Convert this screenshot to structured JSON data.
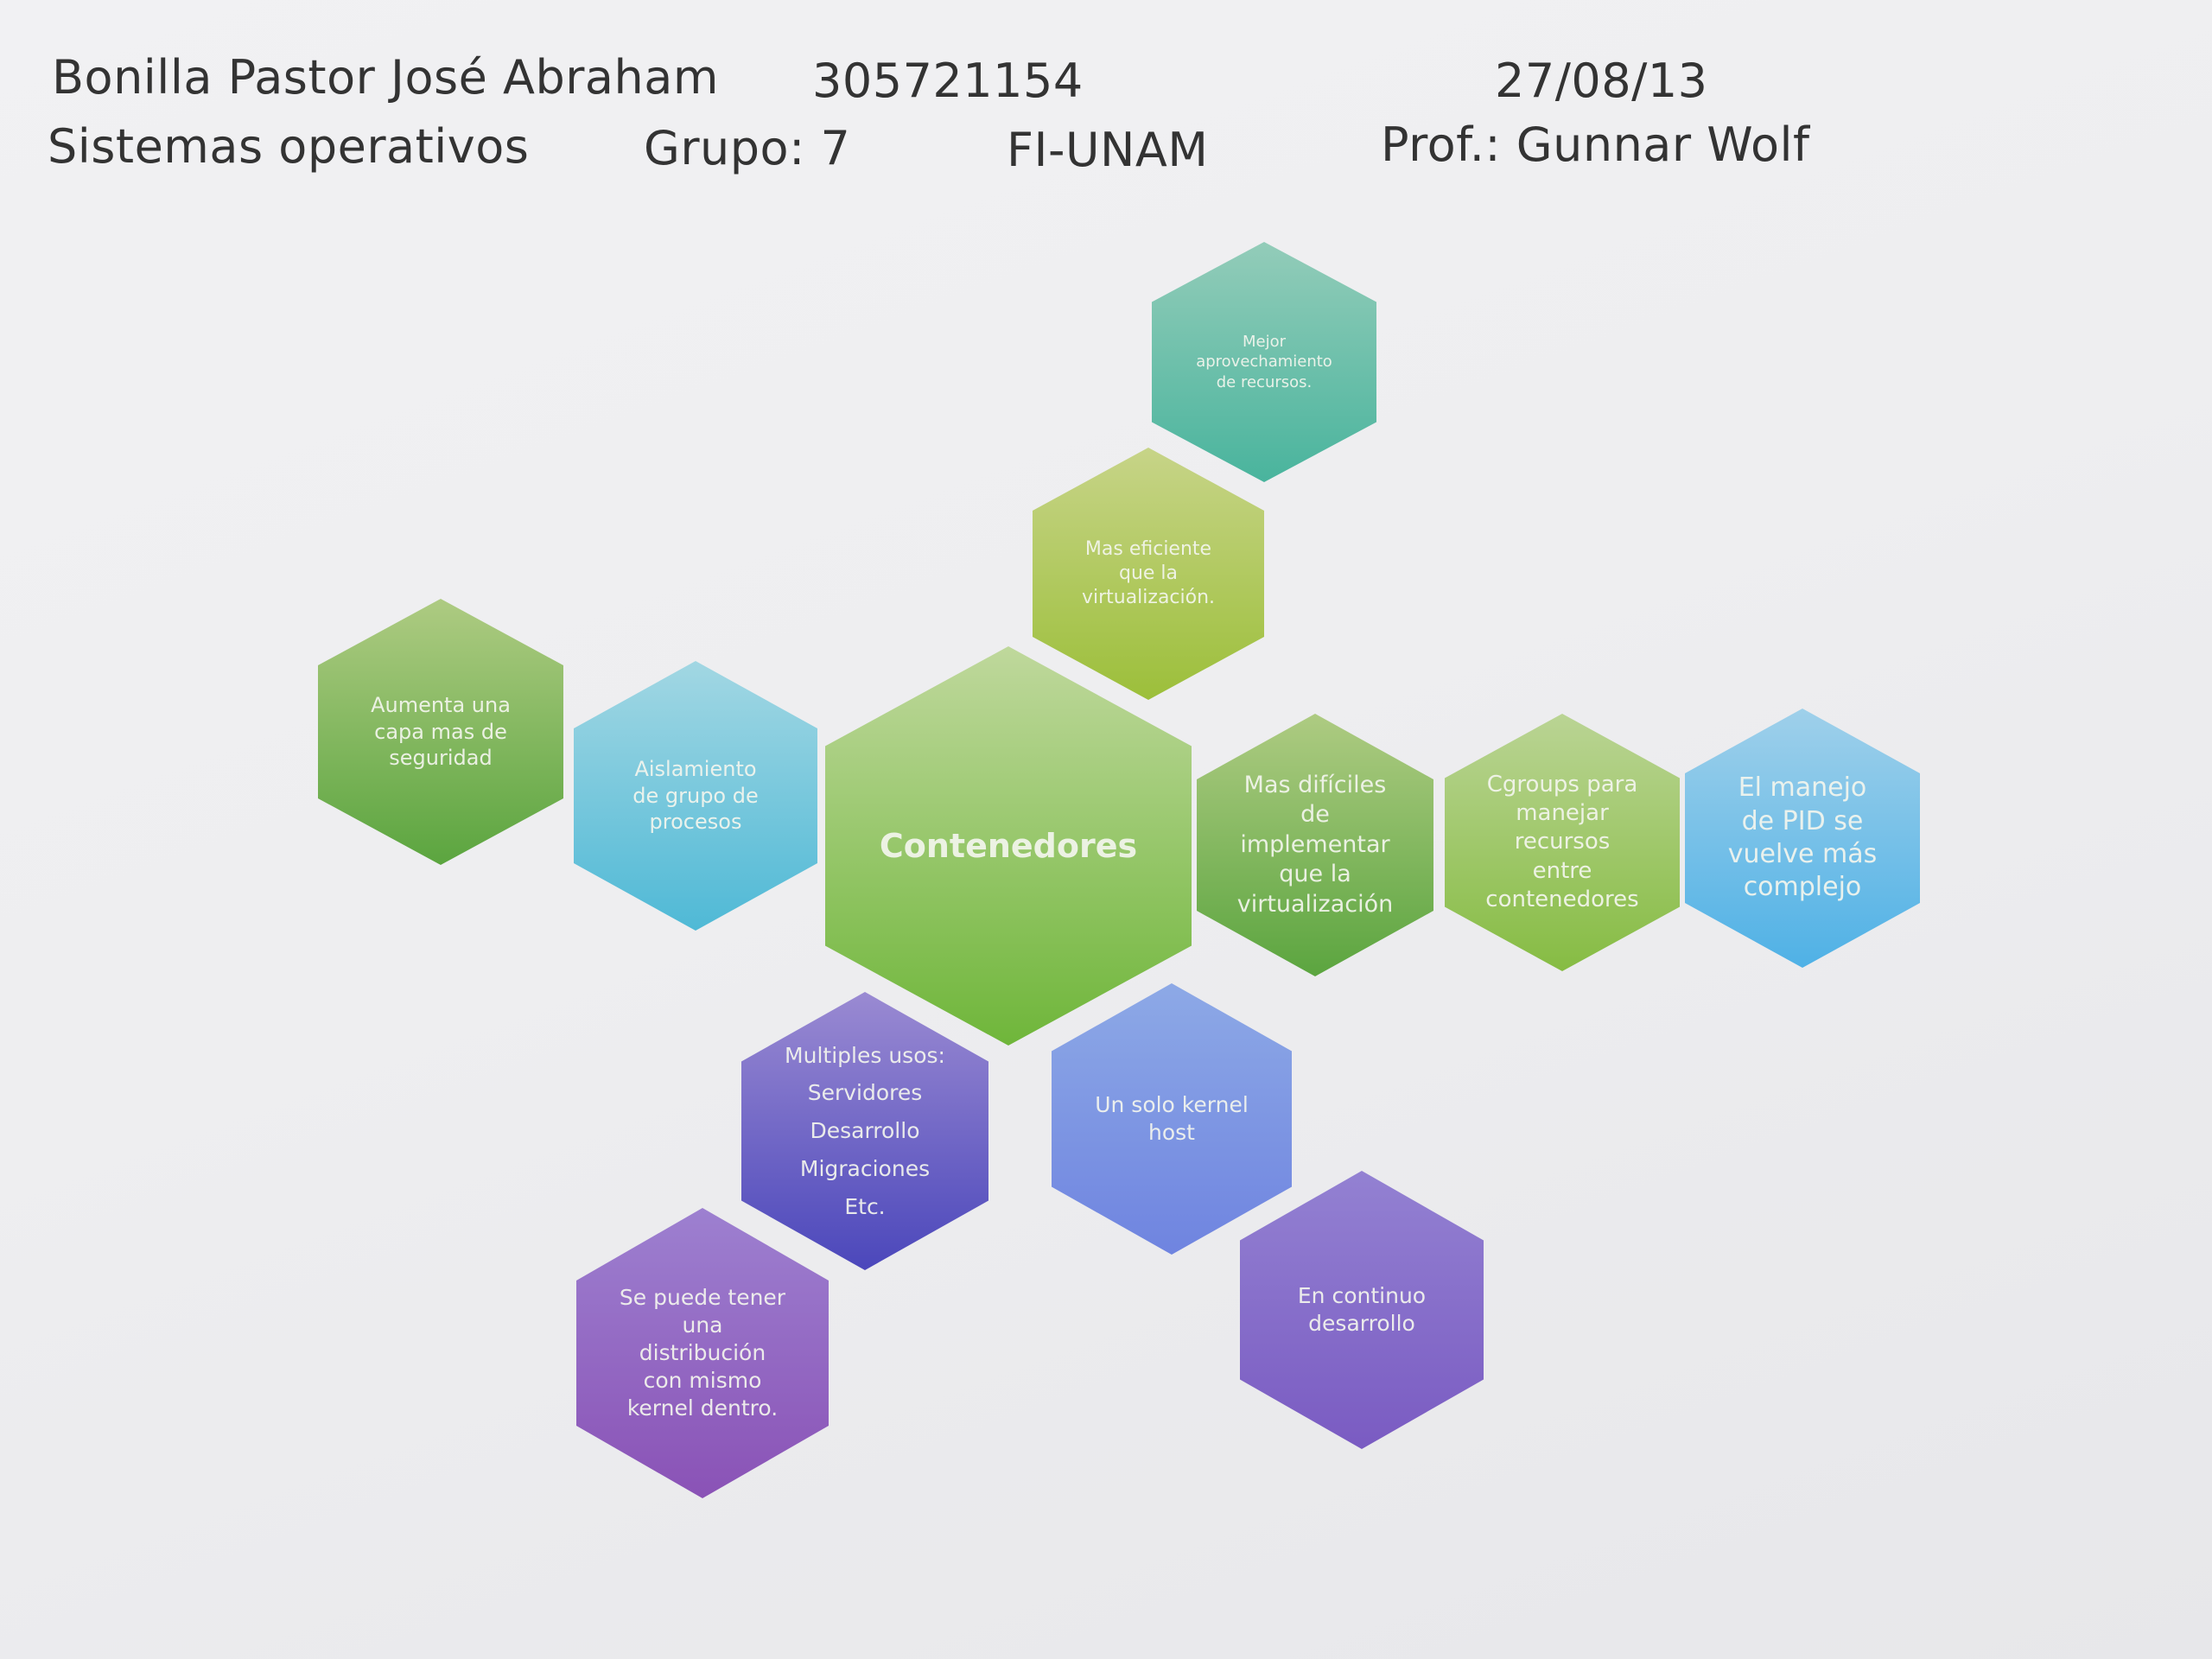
{
  "header": {
    "line1": {
      "name": "Bonilla Pastor José Abraham",
      "student_id": "305721154",
      "date": "27/08/13"
    },
    "line2": {
      "course": "Sistemas operativos",
      "group": "Grupo: 7",
      "school": "FI-UNAM",
      "professor": "Prof.: Gunnar Wolf"
    }
  },
  "diagram": {
    "center": "Contenedores",
    "nodes": {
      "resources": "Mejor\naprovechamiento\nde recursos.",
      "efficient": "Mas eficiente\nque la\nvirtualización.",
      "security": "Aumenta una\ncapa mas de\nseguridad",
      "isolation": "Aislamiento\nde grupo de\nprocesos",
      "harder": "Mas difíciles\nde\nimplementar\nque la\nvirtualización",
      "cgroups": "Cgroups para\nmanejar\nrecursos\nentre\ncontenedores",
      "pid": "El manejo\nde PID se\nvuelve más\ncomplejo",
      "uses": "Multiples usos:\nServidores\nDesarrollo\nMigraciones\nEtc.",
      "kernel": "Un solo kernel\nhost",
      "distro": "Se puede tener\nuna\ndistribución\ncon mismo\nkernel  dentro.",
      "continuous": "En continuo\ndesarrollo"
    }
  }
}
